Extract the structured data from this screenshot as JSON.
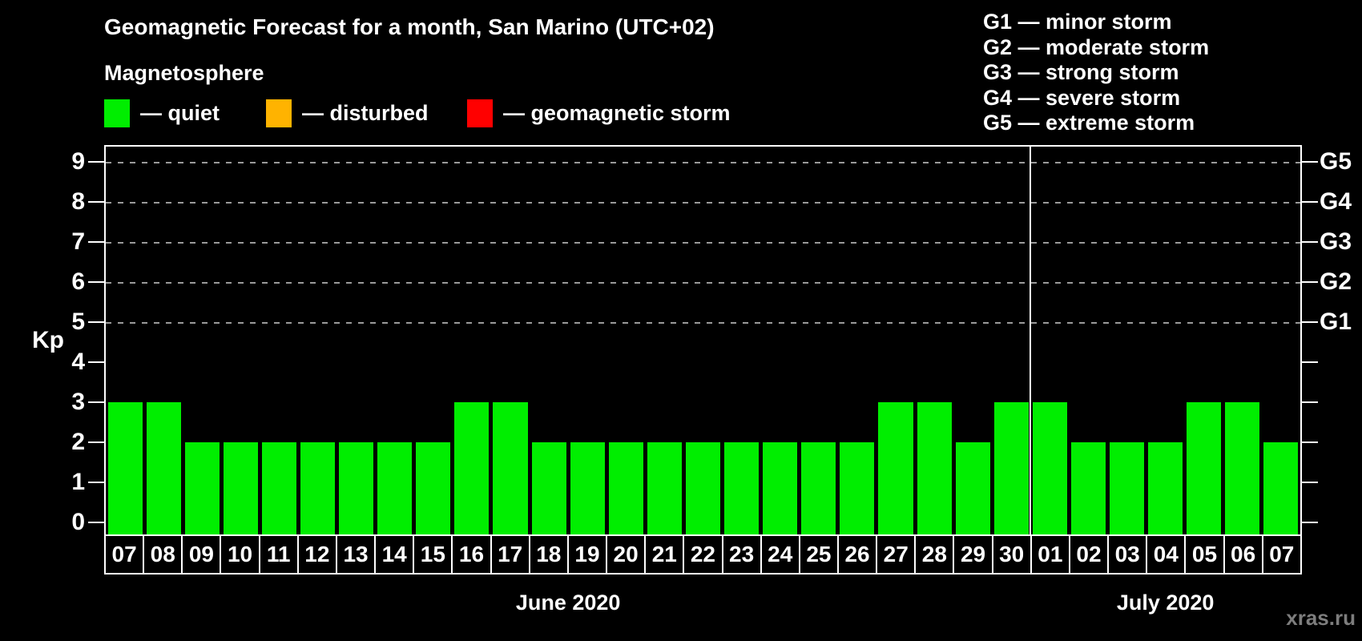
{
  "title": "Geomagnetic Forecast for a month, San Marino (UTC+02)",
  "subtitle": "Magnetosphere",
  "watermark": "xras.ru",
  "colors": {
    "quiet": "#00ee00",
    "disturbed": "#ffb300",
    "storm": "#ff0000",
    "axis": "#ffffff",
    "grid": "#9a9a9a",
    "watermark": "#7d7d7d"
  },
  "legend": {
    "items": [
      {
        "key": "quiet",
        "label": "— quiet",
        "color": "#00ee00"
      },
      {
        "key": "disturbed",
        "label": "— disturbed",
        "color": "#ffb300"
      },
      {
        "key": "storm",
        "label": "— geomagnetic storm",
        "color": "#ff0000"
      }
    ]
  },
  "storm_scale_legend": {
    "items": [
      "G1 — minor storm",
      "G2 — moderate storm",
      "G3 — strong storm",
      "G4 — severe storm",
      "G5 — extreme storm"
    ]
  },
  "chart_data": {
    "type": "bar",
    "title": "Geomagnetic Forecast for a month, San Marino (UTC+02)",
    "ylabel": "Kp",
    "ylim": [
      -0.3,
      9.35
    ],
    "yticks": [
      0,
      1,
      2,
      3,
      4,
      5,
      6,
      7,
      8,
      9
    ],
    "grid_levels": [
      5,
      6,
      7,
      8,
      9
    ],
    "grid_style": "dashed horizontal gray lines at G-storm levels only",
    "legend_position": "top-left",
    "bar_color": "#00ee00",
    "right_axis": {
      "labels": [
        {
          "text": "G1",
          "kp": 5
        },
        {
          "text": "G2",
          "kp": 6
        },
        {
          "text": "G3",
          "kp": 7
        },
        {
          "text": "G4",
          "kp": 8
        },
        {
          "text": "G5",
          "kp": 9
        }
      ]
    },
    "groups": [
      {
        "label": "June 2020",
        "categories": [
          "07",
          "08",
          "09",
          "10",
          "11",
          "12",
          "13",
          "14",
          "15",
          "16",
          "17",
          "18",
          "19",
          "20",
          "21",
          "22",
          "23",
          "24",
          "25",
          "26",
          "27",
          "28",
          "29",
          "30"
        ],
        "values": [
          3,
          3,
          2,
          2,
          2,
          2,
          2,
          2,
          2,
          3,
          3,
          2,
          2,
          2,
          2,
          2,
          2,
          2,
          2,
          2,
          3,
          3,
          2,
          3
        ],
        "condition_key": "quiet"
      },
      {
        "label": "July 2020",
        "categories": [
          "01",
          "02",
          "03",
          "04",
          "05",
          "06",
          "07"
        ],
        "values": [
          3,
          2,
          2,
          2,
          3,
          3,
          2
        ],
        "condition_key": "quiet"
      }
    ]
  }
}
